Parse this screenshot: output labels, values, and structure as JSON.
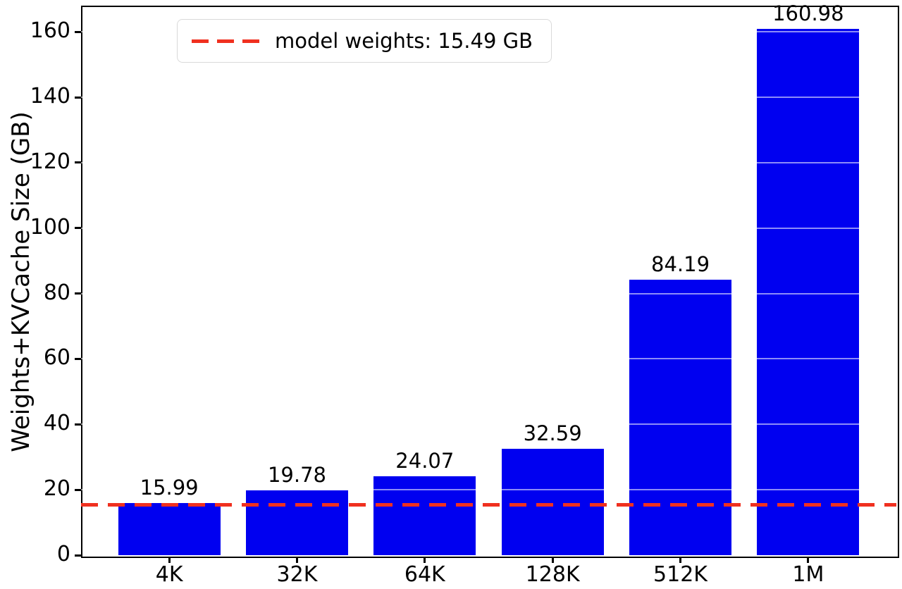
{
  "chart_data": {
    "type": "bar",
    "title": "",
    "categories": [
      "4K",
      "32K",
      "64K",
      "128K",
      "512K",
      "1M"
    ],
    "values": [
      15.99,
      19.78,
      24.07,
      32.59,
      84.19,
      160.98
    ],
    "bar_labels": [
      "15.99",
      "19.78",
      "24.07",
      "32.59",
      "84.19",
      "160.98"
    ],
    "xlabel": "",
    "ylabel": "Weights+KVCache Size (GB)",
    "ylim": [
      0,
      168
    ],
    "yticks": [
      0,
      20,
      40,
      60,
      80,
      100,
      120,
      140,
      160
    ],
    "grid": "faint white horizontal gridlines over bars at each y tick",
    "legend_position": "upper left",
    "colors": {
      "bar": "#0000f0",
      "reference_line": "#f0301f"
    },
    "reference_line": {
      "value": 15.49,
      "style": "dashed",
      "label": "model weights: 15.49 GB"
    }
  }
}
